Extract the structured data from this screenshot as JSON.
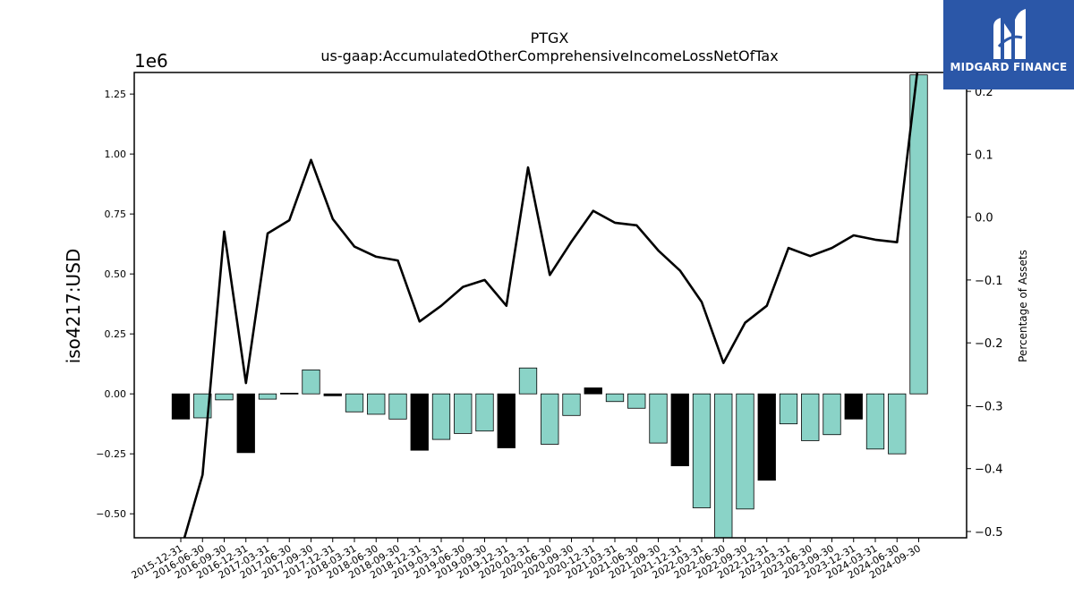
{
  "chart_data": {
    "type": "bar",
    "title": "PTGX",
    "subtitle": "us-gaap:AccumulatedOtherComprehensiveIncomeLossNetOfTax",
    "ylabel": "iso4217:USD",
    "y_multiplier": "1e6",
    "y2label": "Percentage of Assets",
    "ylim": [
      -0.6,
      1.34
    ],
    "y2lim": [
      -0.51,
      0.23
    ],
    "yticks": [
      "−0.50",
      "−0.25",
      "0.00",
      "0.25",
      "0.50",
      "0.75",
      "1.00",
      "1.25"
    ],
    "y2ticks": [
      "−0.5",
      "−0.4",
      "−0.3",
      "−0.2",
      "−0.1",
      "0.0",
      "0.1",
      "0.2"
    ],
    "categories": [
      "2015-12-31",
      "2016-06-30",
      "2016-09-30",
      "2016-12-31",
      "2017-03-31",
      "2017-06-30",
      "2017-09-30",
      "2017-12-31",
      "2018-03-31",
      "2018-06-30",
      "2018-09-30",
      "2018-12-31",
      "2019-03-31",
      "2019-06-30",
      "2019-09-30",
      "2019-12-31",
      "2020-03-31",
      "2020-06-30",
      "2020-09-30",
      "2020-12-31",
      "2021-03-31",
      "2021-06-30",
      "2021-09-30",
      "2021-12-31",
      "2022-03-31",
      "2022-06-30",
      "2022-09-30",
      "2022-12-31",
      "2023-03-31",
      "2023-06-30",
      "2023-09-30",
      "2023-12-31",
      "2024-03-31",
      "2024-06-30",
      "2024-09-30"
    ],
    "series": [
      {
        "kind": "bar",
        "values": [
          -0.105,
          -0.1,
          -0.025,
          -0.245,
          -0.022,
          0.003,
          0.1,
          -0.008,
          -0.075,
          -0.085,
          -0.105,
          -0.235,
          -0.19,
          -0.165,
          -0.155,
          -0.225,
          0.108,
          -0.21,
          -0.09,
          0.025,
          -0.032,
          -0.06,
          -0.205,
          -0.3,
          -0.475,
          -0.6,
          -0.48,
          -0.36,
          -0.125,
          -0.195,
          -0.17,
          -0.105,
          -0.23,
          -0.25,
          1.33
        ],
        "bar_colors": [
          "#000000",
          "#8ad3c7",
          "#8ad3c7",
          "#000000",
          "#8ad3c7",
          "#000000",
          "#8ad3c7",
          "#000000",
          "#8ad3c7",
          "#8ad3c7",
          "#8ad3c7",
          "#000000",
          "#8ad3c7",
          "#8ad3c7",
          "#8ad3c7",
          "#000000",
          "#8ad3c7",
          "#8ad3c7",
          "#8ad3c7",
          "#000000",
          "#8ad3c7",
          "#8ad3c7",
          "#8ad3c7",
          "#000000",
          "#8ad3c7",
          "#8ad3c7",
          "#8ad3c7",
          "#000000",
          "#8ad3c7",
          "#8ad3c7",
          "#8ad3c7",
          "#000000",
          "#8ad3c7",
          "#8ad3c7",
          "#8ad3c7"
        ]
      },
      {
        "kind": "line",
        "axis": "right",
        "color": "#000000",
        "values": [
          -0.53,
          -0.41,
          -0.023,
          -0.264,
          -0.026,
          -0.005,
          0.091,
          -0.003,
          -0.047,
          -0.063,
          -0.069,
          -0.166,
          -0.141,
          -0.111,
          -0.1,
          -0.141,
          0.079,
          -0.092,
          -0.039,
          0.01,
          -0.009,
          -0.013,
          -0.053,
          -0.085,
          -0.135,
          -0.232,
          -0.168,
          -0.141,
          -0.049,
          -0.062,
          -0.049,
          -0.029,
          -0.036,
          -0.04,
          0.25
        ]
      }
    ]
  },
  "logo": {
    "text": "MIDGARD FINANCE",
    "color": "#2b57a8"
  }
}
